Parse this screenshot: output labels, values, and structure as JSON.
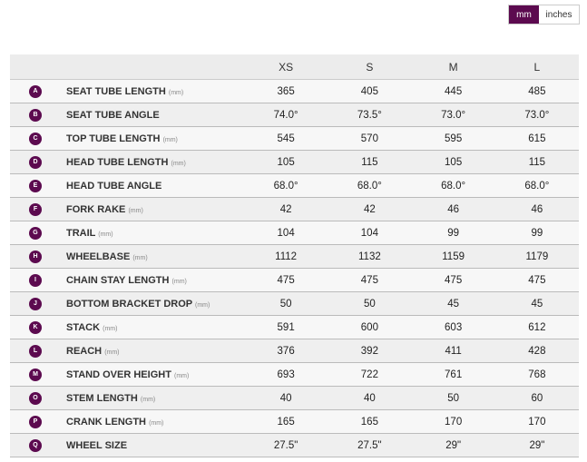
{
  "units": {
    "mm": "mm",
    "inches": "inches",
    "selected": "mm",
    "accent": "#5c0a4f"
  },
  "sizes": [
    "XS",
    "S",
    "M",
    "L"
  ],
  "rows": [
    {
      "key": "A",
      "label": "SEAT TUBE LENGTH",
      "unit": "(mm)",
      "values": [
        "365",
        "405",
        "445",
        "485"
      ]
    },
    {
      "key": "B",
      "label": "SEAT TUBE ANGLE",
      "unit": "",
      "values": [
        "74.0°",
        "73.5°",
        "73.0°",
        "73.0°"
      ]
    },
    {
      "key": "C",
      "label": "TOP TUBE LENGTH",
      "unit": "(mm)",
      "values": [
        "545",
        "570",
        "595",
        "615"
      ]
    },
    {
      "key": "D",
      "label": "HEAD TUBE LENGTH",
      "unit": "(mm)",
      "values": [
        "105",
        "115",
        "105",
        "115"
      ]
    },
    {
      "key": "E",
      "label": "HEAD TUBE ANGLE",
      "unit": "",
      "values": [
        "68.0°",
        "68.0°",
        "68.0°",
        "68.0°"
      ]
    },
    {
      "key": "F",
      "label": "FORK RAKE",
      "unit": "(mm)",
      "values": [
        "42",
        "42",
        "46",
        "46"
      ]
    },
    {
      "key": "G",
      "label": "TRAIL",
      "unit": "(mm)",
      "values": [
        "104",
        "104",
        "99",
        "99"
      ]
    },
    {
      "key": "H",
      "label": "WHEELBASE",
      "unit": "(mm)",
      "values": [
        "1112",
        "1132",
        "1159",
        "1179"
      ]
    },
    {
      "key": "I",
      "label": "CHAIN STAY LENGTH",
      "unit": "(mm)",
      "values": [
        "475",
        "475",
        "475",
        "475"
      ]
    },
    {
      "key": "J",
      "label": "BOTTOM BRACKET DROP",
      "unit": "(mm)",
      "values": [
        "50",
        "50",
        "45",
        "45"
      ]
    },
    {
      "key": "K",
      "label": "STACK",
      "unit": "(mm)",
      "values": [
        "591",
        "600",
        "603",
        "612"
      ]
    },
    {
      "key": "L",
      "label": "REACH",
      "unit": "(mm)",
      "values": [
        "376",
        "392",
        "411",
        "428"
      ]
    },
    {
      "key": "M",
      "label": "STAND OVER HEIGHT",
      "unit": "(mm)",
      "values": [
        "693",
        "722",
        "761",
        "768"
      ]
    },
    {
      "key": "O",
      "label": "STEM LENGTH",
      "unit": "(mm)",
      "values": [
        "40",
        "40",
        "50",
        "60"
      ]
    },
    {
      "key": "P",
      "label": "CRANK LENGTH",
      "unit": "(mm)",
      "values": [
        "165",
        "165",
        "170",
        "170"
      ]
    },
    {
      "key": "Q",
      "label": "WHEEL SIZE",
      "unit": "",
      "values": [
        "27.5\"",
        "27.5\"",
        "29\"",
        "29\""
      ]
    }
  ]
}
